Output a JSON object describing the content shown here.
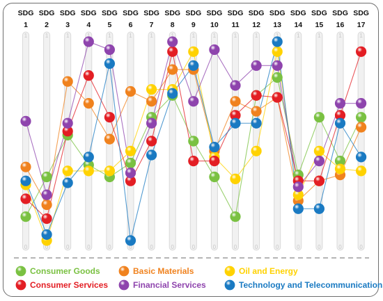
{
  "chart_data": {
    "type": "line",
    "x_labels_top": [
      "SDG",
      "SDG",
      "SDG",
      "SDG",
      "SDG",
      "SDG",
      "SDG",
      "SDG",
      "SDG",
      "SDG",
      "SDG",
      "SDG",
      "SDG",
      "SDG",
      "SDG",
      "SDG",
      "SDG"
    ],
    "categories": [
      "1",
      "2",
      "3",
      "4",
      "5",
      "6",
      "7",
      "8",
      "9",
      "10",
      "11",
      "12",
      "13",
      "14",
      "15",
      "16",
      "17"
    ],
    "axis_top_tick": "1",
    "axis_bottom_tick": "0",
    "ylim": [
      0,
      1
    ],
    "grid": false,
    "legend_position": "bottom",
    "series": [
      {
        "name": "Consumer Goods",
        "color": "#7ac142",
        "values": [
          0.12,
          0.32,
          0.53,
          0.38,
          0.32,
          0.39,
          0.62,
          0.73,
          0.5,
          0.32,
          0.12,
          0.73,
          0.82,
          0.33,
          0.62,
          0.4,
          0.62
        ]
      },
      {
        "name": "Basic Materials",
        "color": "#f0821e",
        "values": [
          0.37,
          0.18,
          0.8,
          0.69,
          0.51,
          0.75,
          0.7,
          0.86,
          0.86,
          0.45,
          0.7,
          0.65,
          0.72,
          0.2,
          0.3,
          0.33,
          0.57
        ]
      },
      {
        "name": "Oil and Energy",
        "color": "#ffd200",
        "values": [
          0.28,
          0.0,
          0.35,
          0.35,
          0.35,
          0.45,
          0.76,
          0.76,
          0.95,
          0.42,
          0.31,
          0.45,
          0.95,
          0.23,
          0.45,
          0.36,
          0.35
        ]
      },
      {
        "name": "Consumer Services",
        "color": "#e31e24",
        "values": [
          0.21,
          0.11,
          0.55,
          0.83,
          0.62,
          0.3,
          0.5,
          0.95,
          0.4,
          0.4,
          0.63,
          0.73,
          0.72,
          0.3,
          0.3,
          0.63,
          0.95
        ]
      },
      {
        "name": "Financial Services",
        "color": "#8e44ad",
        "values": [
          0.6,
          0.23,
          0.59,
          1.0,
          0.96,
          0.34,
          0.59,
          1.0,
          0.7,
          0.96,
          0.78,
          0.88,
          0.88,
          0.27,
          0.4,
          0.69,
          0.69
        ]
      },
      {
        "name": "Technology and Telecommunications",
        "color": "#1a7ac2",
        "values": [
          0.3,
          0.03,
          0.29,
          0.42,
          0.89,
          0.0,
          0.43,
          0.74,
          0.88,
          0.47,
          0.59,
          0.59,
          1.0,
          0.16,
          0.16,
          0.59,
          0.42
        ]
      }
    ]
  }
}
